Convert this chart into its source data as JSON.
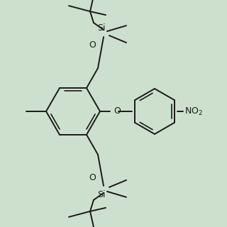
{
  "bg_color": "#cde0cd",
  "line_color": "#1a1a1a",
  "lw": 1.4,
  "lw_thin": 1.2,
  "figsize": [
    3.2,
    3.2
  ],
  "dpi": 100,
  "xlim": [
    0,
    320
  ],
  "ylim": [
    0,
    320
  ]
}
